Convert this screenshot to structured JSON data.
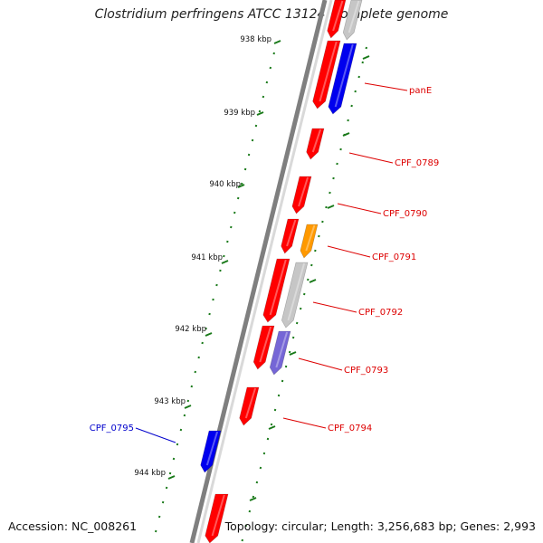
{
  "title": "Clostridium perfringens ATCC 13124, complete genome",
  "accession": "Accession: NC_008261",
  "topology": "Topology: circular; Length: 3,256,683 bp; Genes: 2,993",
  "colors": {
    "backbone": "#7f7f7f",
    "tick": "#1a7a1a",
    "gene_red": "#ff0000",
    "gene_blue": "#0000ee",
    "gene_orange": "#ff9900",
    "gene_gray": "#c6c6c6",
    "gene_purple": "#7566d6",
    "label_red": "#dd0000",
    "label_blue": "#0000cc"
  },
  "scale_labels": [
    "938 kbp",
    "939 kbp",
    "940 kbp",
    "941 kbp",
    "942 kbp",
    "943 kbp",
    "944 kbp"
  ],
  "gene_labels": [
    {
      "name": "panE",
      "color": "label_red"
    },
    {
      "name": "CPF_0789",
      "color": "label_red"
    },
    {
      "name": "CPF_0790",
      "color": "label_red"
    },
    {
      "name": "CPF_0791",
      "color": "label_red"
    },
    {
      "name": "CPF_0792",
      "color": "label_red"
    },
    {
      "name": "CPF_0793",
      "color": "label_red"
    },
    {
      "name": "CPF_0794",
      "color": "label_red"
    },
    {
      "name": "CPF_0795",
      "color": "label_blue"
    }
  ]
}
